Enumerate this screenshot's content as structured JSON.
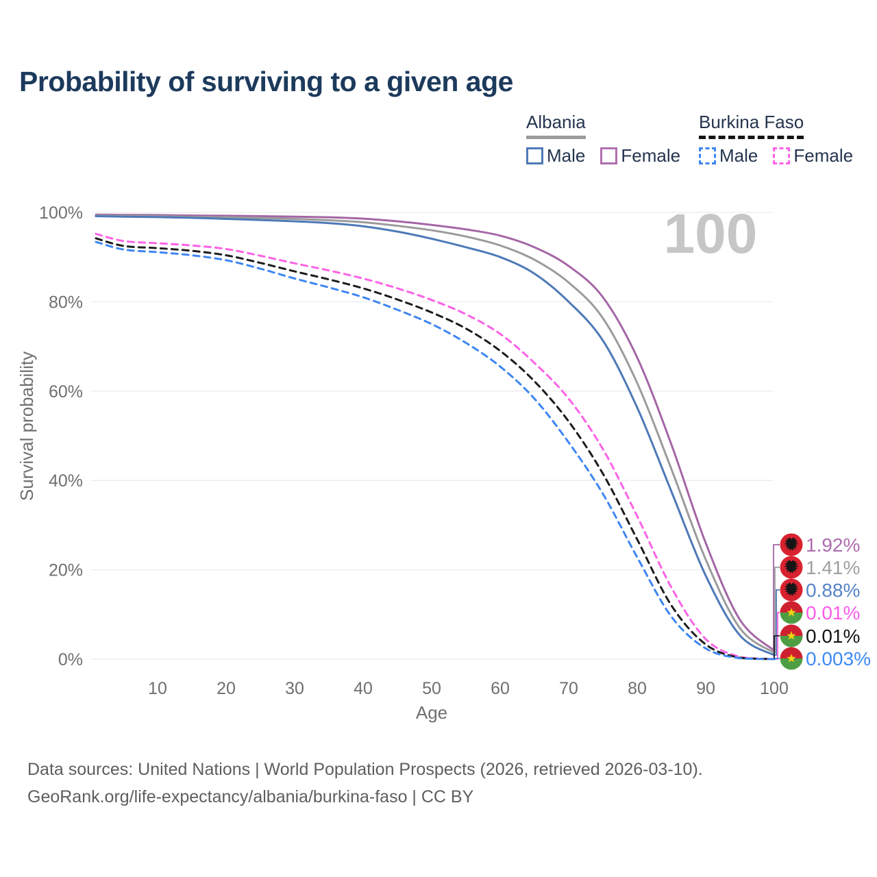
{
  "page": {
    "title": "Probability of surviving to a given age",
    "watermark": "100",
    "footer_line1": "Data sources: United Nations | World Population Prospects (2026, retrieved 2026-03-10).",
    "footer_line2": "GeoRank.org/life-expectancy/albania/burkina-faso | CC BY"
  },
  "legend": {
    "groups": [
      {
        "name": "Albania",
        "underline_style": "solid",
        "underline_color": "#9b9b9b",
        "items": [
          {
            "label": "Male",
            "color": "#4e79b7",
            "dashed": false
          },
          {
            "label": "Female",
            "color": "#b06fae",
            "dashed": false
          }
        ]
      },
      {
        "name": "Burkina Faso",
        "underline_style": "dashed",
        "underline_color": "#141414",
        "items": [
          {
            "label": "Male",
            "color": "#3e86f2",
            "dashed": true
          },
          {
            "label": "Female",
            "color": "#fb63e6",
            "dashed": true
          }
        ]
      }
    ]
  },
  "chart_data": {
    "type": "line",
    "title": "Probability of surviving to a given age",
    "xlabel": "Age",
    "ylabel": "Survival probability",
    "xlim": [
      0,
      100
    ],
    "ylim": [
      0,
      100
    ],
    "grid": true,
    "legend_position": "top-right",
    "watermark": "100",
    "xticks": [
      10,
      20,
      30,
      40,
      50,
      60,
      70,
      80,
      90,
      100
    ],
    "yticks": [
      {
        "value": 0,
        "label": "0%"
      },
      {
        "value": 20,
        "label": "20%"
      },
      {
        "value": 40,
        "label": "40%"
      },
      {
        "value": 60,
        "label": "60%"
      },
      {
        "value": 80,
        "label": "80%"
      },
      {
        "value": 100,
        "label": "100%"
      }
    ],
    "x": [
      1,
      5,
      10,
      15,
      20,
      25,
      30,
      35,
      40,
      45,
      50,
      55,
      60,
      65,
      70,
      75,
      80,
      85,
      90,
      95,
      100
    ],
    "series": [
      {
        "name": "Albania Female",
        "country": "Albania",
        "sex": "Female",
        "color": "#a466a6",
        "dashed": false,
        "flag": "albania",
        "end_label": "1.92%",
        "end_label_color": "#ae6cae",
        "values": [
          99.5,
          99.45,
          99.4,
          99.3,
          99.25,
          99.15,
          99.05,
          98.9,
          98.6,
          98.0,
          97.2,
          96.2,
          94.8,
          92.2,
          88.0,
          81.0,
          67.5,
          48.0,
          26.0,
          8.8,
          1.92
        ]
      },
      {
        "name": "Albania Both sexes",
        "country": "Albania",
        "sex": "Both",
        "color": "#9b9b9b",
        "dashed": false,
        "flag": "albania",
        "end_label": "1.41%",
        "end_label_color": "#a0a0a0",
        "values": [
          99.3,
          99.25,
          99.15,
          99.0,
          98.9,
          98.75,
          98.55,
          98.25,
          97.8,
          97.0,
          96.0,
          94.6,
          92.6,
          89.4,
          84.3,
          76.3,
          61.8,
          42.5,
          22.3,
          6.9,
          1.41
        ]
      },
      {
        "name": "Albania Male",
        "country": "Albania",
        "sex": "Male",
        "color": "#4e79b7",
        "dashed": false,
        "flag": "albania",
        "end_label": "0.88%",
        "end_label_color": "#5583c6",
        "values": [
          99.15,
          99.05,
          98.95,
          98.8,
          98.55,
          98.3,
          98.0,
          97.6,
          96.9,
          95.7,
          94.1,
          92.2,
          90.0,
          86.3,
          80.0,
          71.3,
          56.3,
          37.5,
          18.7,
          5.3,
          0.88
        ]
      },
      {
        "name": "Burkina Faso Female",
        "country": "Burkina Faso",
        "sex": "Female",
        "color": "#fb63e6",
        "dashed": true,
        "flag": "burkina-faso",
        "end_label": "0.01%",
        "end_label_color": "#fc5ce8",
        "values": [
          95.2,
          93.6,
          93.1,
          92.6,
          91.8,
          90.3,
          88.6,
          87.0,
          85.2,
          83.0,
          80.4,
          77.2,
          72.8,
          66.3,
          58.3,
          47.0,
          32.0,
          16.0,
          4.5,
          0.5,
          0.01
        ]
      },
      {
        "name": "Burkina Faso Both sexes",
        "country": "Burkina Faso",
        "sex": "Both",
        "color": "#1c1c1c",
        "dashed": true,
        "flag": "burkina-faso",
        "end_label": "0.01%",
        "end_label_color": "#141414",
        "values": [
          94.2,
          92.5,
          92.0,
          91.4,
          90.4,
          88.7,
          86.8,
          85.0,
          83.0,
          80.5,
          77.6,
          74.0,
          69.0,
          62.2,
          53.2,
          41.5,
          26.8,
          12.0,
          3.3,
          0.3,
          0.01
        ]
      },
      {
        "name": "Burkina Faso Male",
        "country": "Burkina Faso",
        "sex": "Male",
        "color": "#3e86f2",
        "dashed": true,
        "flag": "burkina-faso",
        "end_label": "0.003%",
        "end_label_color": "#3e8af4",
        "values": [
          93.4,
          91.7,
          91.1,
          90.4,
          89.3,
          87.4,
          85.2,
          83.2,
          81.0,
          78.2,
          75.0,
          70.8,
          65.5,
          58.3,
          48.5,
          37.0,
          22.8,
          9.5,
          2.4,
          0.2,
          0.003
        ]
      }
    ]
  }
}
